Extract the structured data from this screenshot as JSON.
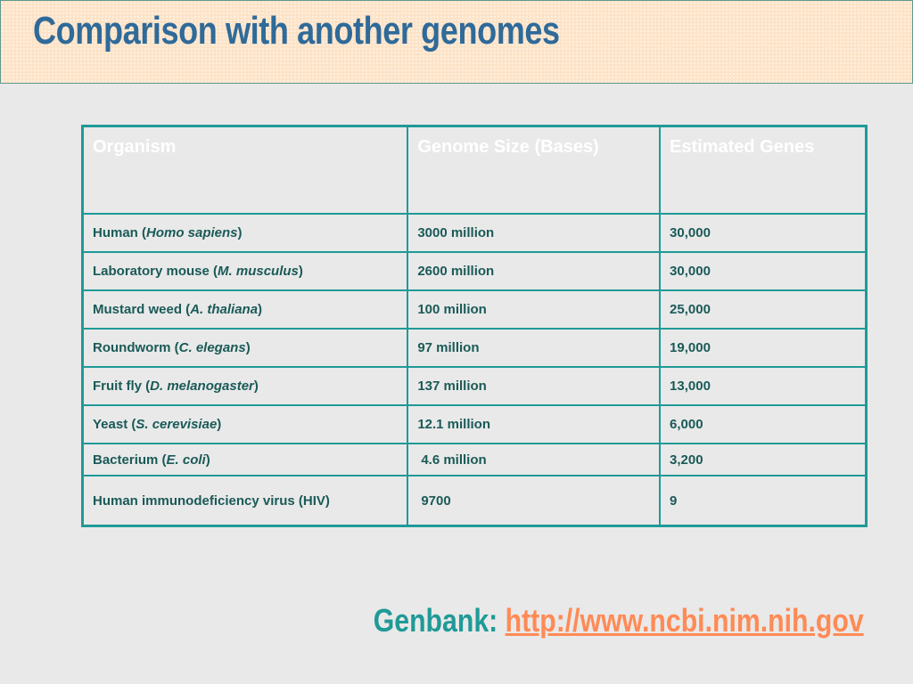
{
  "title": "Comparison with another genomes",
  "table": {
    "headers": [
      "Organism",
      "Genome Size (Bases)",
      "Estimated Genes"
    ],
    "rows": [
      {
        "organism_prefix": "Human (",
        "organism_species": "Homo sapiens",
        "organism_suffix": ")",
        "size": "3000 million",
        "genes": "30,000"
      },
      {
        "organism_prefix": "Laboratory mouse (",
        "organism_species": "M. musculus",
        "organism_suffix": ")",
        "size": "2600 million",
        "genes": "30,000"
      },
      {
        "organism_prefix": "Mustard weed (",
        "organism_species": "A. thaliana",
        "organism_suffix": ")",
        "size": "100 million",
        "genes": "25,000"
      },
      {
        "organism_prefix": "Roundworm (",
        "organism_species": "C. elegans",
        "organism_suffix": ")",
        "size": "97 million",
        "genes": "19,000"
      },
      {
        "organism_prefix": "Fruit fly (",
        "organism_species": "D. melanogaster",
        "organism_suffix": ")",
        "size": "137 million",
        "genes": "13,000"
      },
      {
        "organism_prefix": "Yeast (",
        "organism_species": "S. cerevisiae",
        "organism_suffix": ")",
        "size": "12.1 million",
        "genes": "6,000"
      },
      {
        "organism_prefix": "Bacterium (",
        "organism_species": "E. coli",
        "organism_suffix": ")",
        "size": "4.6 million",
        "genes": "3,200"
      },
      {
        "organism_prefix": "Human immunodeficiency virus (HIV)",
        "organism_species": "",
        "organism_suffix": "",
        "size": "9700",
        "genes": "9"
      }
    ]
  },
  "footer": {
    "label": "Genbank: ",
    "link_text": "http://www.ncbi.nim.nih.gov"
  },
  "colors": {
    "title": "#2f6a99",
    "title_bar_bg": "#fde3c7",
    "table_border": "#1f9a97",
    "cell_text": "#1a5a57",
    "header_text": "#ffffff",
    "footer_label": "#1f9a97",
    "footer_link": "#ff8a55",
    "page_bg": "#e9e9e9"
  }
}
